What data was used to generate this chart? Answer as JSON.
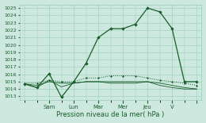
{
  "bg_color": "#cce8df",
  "grid_color": "#99ccbb",
  "line_color": "#1a5c2a",
  "title": "Pression niveau de la mer( hPa )",
  "ylim": [
    1012.5,
    1025.5
  ],
  "yticks": [
    1013,
    1014,
    1015,
    1016,
    1017,
    1018,
    1019,
    1020,
    1021,
    1022,
    1023,
    1024,
    1025
  ],
  "x_positions": [
    0,
    0.5,
    1,
    1.5,
    2,
    2.5,
    3,
    3.5,
    4,
    4.5,
    5,
    5.5,
    6,
    6.5,
    7
  ],
  "series1": [
    1014.7,
    1014.2,
    1016.1,
    1012.9,
    1015.0,
    1017.5,
    1021.0,
    1022.2,
    1022.2,
    1022.8,
    1025.0,
    1024.5,
    1022.2,
    1015.0,
    1015.0
  ],
  "series2": [
    1014.8,
    1014.8,
    1015.2,
    1015.0,
    1015.0,
    1015.5,
    1015.5,
    1015.8,
    1015.8,
    1015.8,
    1015.5,
    1015.2,
    1015.0,
    1014.8,
    1014.5
  ],
  "series3": [
    1014.7,
    1014.5,
    1015.0,
    1014.8,
    1014.8,
    1015.0,
    1015.0,
    1015.0,
    1015.0,
    1015.0,
    1015.0,
    1014.8,
    1014.5,
    1014.2,
    1014.0
  ],
  "series4": [
    1014.7,
    1014.2,
    1015.2,
    1014.3,
    1014.8,
    1015.0,
    1015.0,
    1014.8,
    1014.8,
    1014.8,
    1015.0,
    1014.5,
    1014.2,
    1014.0,
    1014.0
  ],
  "xtick_positions": [
    1,
    2,
    3,
    4,
    5,
    6,
    7
  ],
  "xtick_labels": [
    "Sam",
    "Lun",
    "Mar",
    "Mer",
    "Jeu",
    "V",
    ""
  ],
  "xlim": [
    -0.2,
    7.2
  ]
}
